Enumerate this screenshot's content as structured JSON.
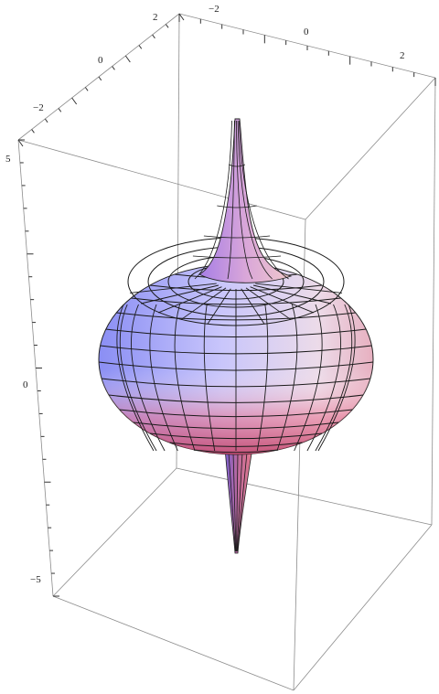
{
  "chart_data": {
    "type": "surface3d",
    "title": "",
    "xlabel": "",
    "ylabel": "",
    "zlabel": "",
    "x_ticks": [
      "−2",
      "0",
      "2"
    ],
    "y_ticks": [
      "−2",
      "0",
      "2"
    ],
    "z_ticks": [
      "−5",
      "0",
      "5"
    ],
    "xlim": [
      -3,
      3
    ],
    "ylim": [
      -3,
      3
    ],
    "zlim": [
      -5.5,
      5.5
    ],
    "boxed": true,
    "mesh": true,
    "colors": {
      "background": "#ffffff",
      "box": "#8c8c8c",
      "mesh": "#111111",
      "shade_left": "#8f93f5",
      "shade_center": "#dcd8ff",
      "shade_right": "#ecd6e6",
      "shade_bottom": "#e46a86"
    }
  }
}
